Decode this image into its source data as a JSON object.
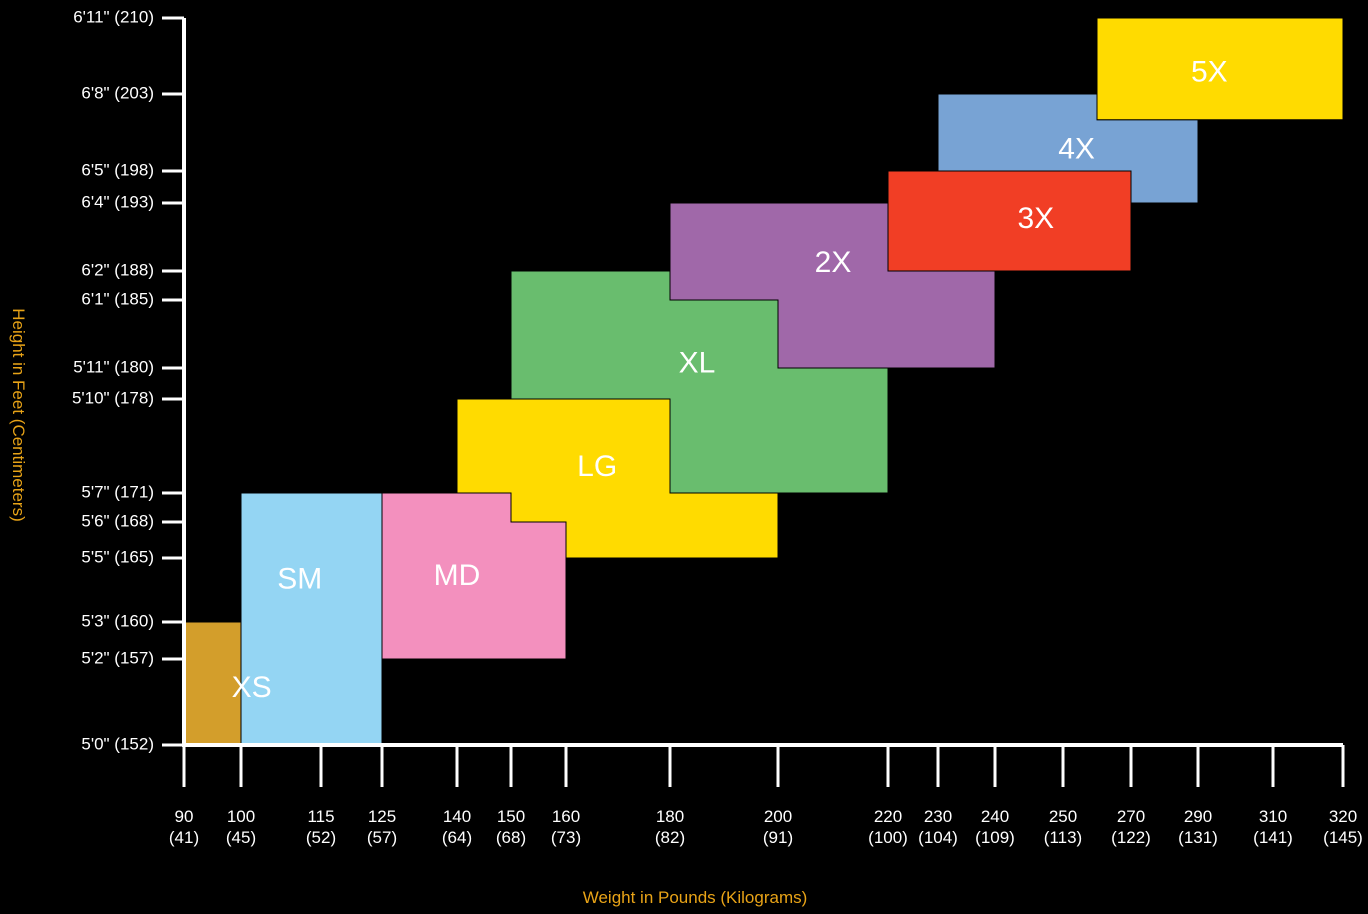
{
  "chart_data": {
    "type": "size-chart",
    "xlabel": "Weight in Pounds (Kilograms)",
    "ylabel": "Height in Feet (Centimeters)",
    "x_axis": {
      "ticks": [
        {
          "lb": 90,
          "label": "90",
          "sub": "(41)"
        },
        {
          "lb": 100,
          "label": "100",
          "sub": "(45)"
        },
        {
          "lb": 115,
          "label": "115",
          "sub": "(52)"
        },
        {
          "lb": 125,
          "label": "125",
          "sub": "(57)"
        },
        {
          "lb": 140,
          "label": "140",
          "sub": "(64)"
        },
        {
          "lb": 150,
          "label": "150",
          "sub": "(68)"
        },
        {
          "lb": 160,
          "label": "160",
          "sub": "(73)"
        },
        {
          "lb": 180,
          "label": "180",
          "sub": "(82)"
        },
        {
          "lb": 200,
          "label": "200",
          "sub": "(91)"
        },
        {
          "lb": 220,
          "label": "220",
          "sub": "(100)"
        },
        {
          "lb": 230,
          "label": "230",
          "sub": "(104)"
        },
        {
          "lb": 240,
          "label": "240",
          "sub": "(109)"
        },
        {
          "lb": 250,
          "label": "250",
          "sub": "(113)"
        },
        {
          "lb": 270,
          "label": "270",
          "sub": "(122)"
        },
        {
          "lb": 290,
          "label": "290",
          "sub": "(131)"
        },
        {
          "lb": 310,
          "label": "310",
          "sub": "(141)"
        },
        {
          "lb": 320,
          "label": "320",
          "sub": "(145)"
        }
      ]
    },
    "y_axis": {
      "ticks": [
        {
          "in": 60,
          "label": "5'0\" (152)"
        },
        {
          "in": 62,
          "label": "5'2\" (157)"
        },
        {
          "in": 63,
          "label": "5'3\" (160)"
        },
        {
          "in": 65,
          "label": "5'5\" (165)"
        },
        {
          "in": 66,
          "label": "5'6\" (168)"
        },
        {
          "in": 67,
          "label": "5'7\" (171)"
        },
        {
          "in": 70,
          "label": "5'10\" (178)"
        },
        {
          "in": 71,
          "label": "5'11\" (180)"
        },
        {
          "in": 73,
          "label": "6'1\" (185)"
        },
        {
          "in": 74,
          "label": "6'2\" (188)"
        },
        {
          "in": 76,
          "label": "6'4\" (193)"
        },
        {
          "in": 77,
          "label": "6'5\" (198)"
        },
        {
          "in": 80,
          "label": "6'8\" (203)"
        },
        {
          "in": 83,
          "label": "6'11\" (210)"
        }
      ]
    },
    "regions": [
      {
        "name": "XS",
        "color": "#d39e2b",
        "polygon": [
          [
            90,
            60
          ],
          [
            115,
            60
          ],
          [
            115,
            63
          ],
          [
            90,
            63
          ]
        ],
        "label_at": [
          102,
          61.3
        ]
      },
      {
        "name": "SM",
        "color": "#94d5f3",
        "polygon": [
          [
            100,
            60
          ],
          [
            125,
            60
          ],
          [
            125,
            67
          ],
          [
            100,
            67
          ]
        ],
        "label_at": [
          111,
          64.3
        ]
      },
      {
        "name": "MD",
        "color": "#f390be",
        "polygon": [
          [
            125,
            62
          ],
          [
            160,
            62
          ],
          [
            160,
            66
          ],
          [
            150,
            66
          ],
          [
            150,
            67
          ],
          [
            125,
            67
          ]
        ],
        "label_at": [
          140,
          64.4
        ]
      },
      {
        "name": "LG",
        "color": "#ffdb00",
        "polygon": [
          [
            140,
            70
          ],
          [
            180,
            70
          ],
          [
            180,
            67
          ],
          [
            200,
            67
          ],
          [
            200,
            65
          ],
          [
            160,
            65
          ],
          [
            160,
            66
          ],
          [
            150,
            66
          ],
          [
            150,
            67
          ],
          [
            140,
            67
          ]
        ],
        "label_at": [
          166,
          67.8
        ]
      },
      {
        "name": "XL",
        "color": "#69bd6e",
        "polygon": [
          [
            150,
            74
          ],
          [
            180,
            74
          ],
          [
            180,
            73
          ],
          [
            200,
            73
          ],
          [
            200,
            71
          ],
          [
            220,
            71
          ],
          [
            220,
            67
          ],
          [
            180,
            67
          ],
          [
            180,
            70
          ],
          [
            150,
            70
          ]
        ],
        "label_at": [
          185,
          71.1
        ]
      },
      {
        "name": "2X",
        "color": "#a068a9",
        "polygon": [
          [
            180,
            76
          ],
          [
            220,
            76
          ],
          [
            220,
            74
          ],
          [
            240,
            74
          ],
          [
            240,
            71
          ],
          [
            200,
            71
          ],
          [
            200,
            73
          ],
          [
            180,
            73
          ]
        ],
        "label_at": [
          210,
          74.2
        ]
      },
      {
        "name": "3X",
        "color": "#f13e25",
        "polygon": [
          [
            220,
            77
          ],
          [
            270,
            77
          ],
          [
            270,
            74
          ],
          [
            220,
            74
          ]
        ],
        "label_at": [
          246,
          75.5
        ]
      },
      {
        "name": "4X",
        "color": "#78a3d4",
        "polygon": [
          [
            230,
            80
          ],
          [
            260,
            80
          ],
          [
            260,
            79
          ],
          [
            290,
            79
          ],
          [
            290,
            76
          ],
          [
            270,
            76
          ],
          [
            270,
            77
          ],
          [
            230,
            77
          ]
        ],
        "label_at": [
          254,
          77.8
        ]
      },
      {
        "name": "5X",
        "color": "#ffdb00",
        "polygon": [
          [
            260,
            83
          ],
          [
            320,
            83
          ],
          [
            320,
            79
          ],
          [
            260,
            79
          ]
        ],
        "label_at": [
          293,
          80.8
        ]
      }
    ]
  }
}
